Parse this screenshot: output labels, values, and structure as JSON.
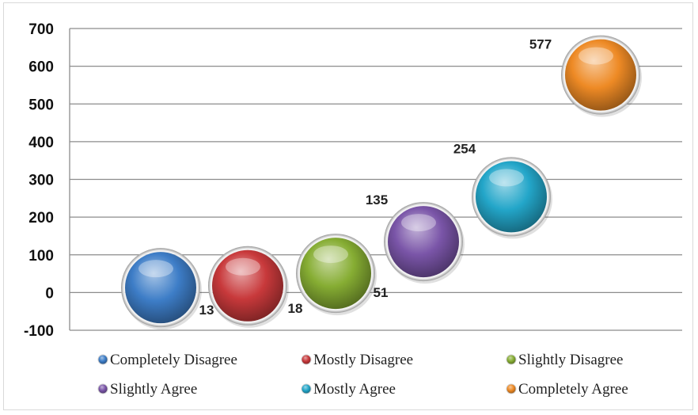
{
  "chart_data": {
    "type": "scatter",
    "title": "",
    "xlabel": "",
    "ylabel": "",
    "ylim": [
      -100,
      700
    ],
    "yticks": [
      -100,
      0,
      100,
      200,
      300,
      400,
      500,
      600,
      700
    ],
    "grid": true,
    "legend_position": "bottom",
    "series": [
      {
        "name": "Completely Disagree",
        "value": 13,
        "color": "#3d7dc7"
      },
      {
        "name": "Mostly Disagree",
        "value": 18,
        "color": "#c8393b"
      },
      {
        "name": "Slightly Disagree",
        "value": 51,
        "color": "#86ad33"
      },
      {
        "name": "Slightly Agree",
        "value": 135,
        "color": "#7a55a8"
      },
      {
        "name": "Mostly Agree",
        "value": 254,
        "color": "#23a6c9"
      },
      {
        "name": "Completely Agree",
        "value": 577,
        "color": "#ee8a25"
      }
    ]
  }
}
